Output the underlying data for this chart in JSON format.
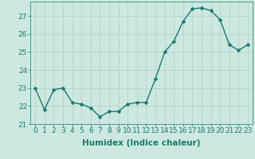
{
  "x": [
    0,
    1,
    2,
    3,
    4,
    5,
    6,
    7,
    8,
    9,
    10,
    11,
    12,
    13,
    14,
    15,
    16,
    17,
    18,
    19,
    20,
    21,
    22,
    23
  ],
  "y": [
    23.0,
    21.8,
    22.9,
    23.0,
    22.2,
    22.1,
    21.9,
    21.4,
    21.7,
    21.7,
    22.1,
    22.2,
    22.2,
    23.5,
    25.0,
    25.6,
    26.7,
    27.4,
    27.45,
    27.3,
    26.8,
    25.4,
    25.1,
    25.4
  ],
  "line_color": "#1a7a6e",
  "marker": "D",
  "marker_size": 2.5,
  "bg_color": "#cce8e0",
  "grid_color": "#b0d0c8",
  "xlabel": "Humidex (Indice chaleur)",
  "ylim_min": 21,
  "ylim_max": 27.8,
  "xlim_min": -0.5,
  "xlim_max": 23.5,
  "yticks": [
    21,
    22,
    23,
    24,
    25,
    26,
    27
  ],
  "xticks": [
    0,
    1,
    2,
    3,
    4,
    5,
    6,
    7,
    8,
    9,
    10,
    11,
    12,
    13,
    14,
    15,
    16,
    17,
    18,
    19,
    20,
    21,
    22,
    23
  ],
  "xlabel_fontsize": 7.5,
  "tick_fontsize": 6.5,
  "line_width": 1.0
}
